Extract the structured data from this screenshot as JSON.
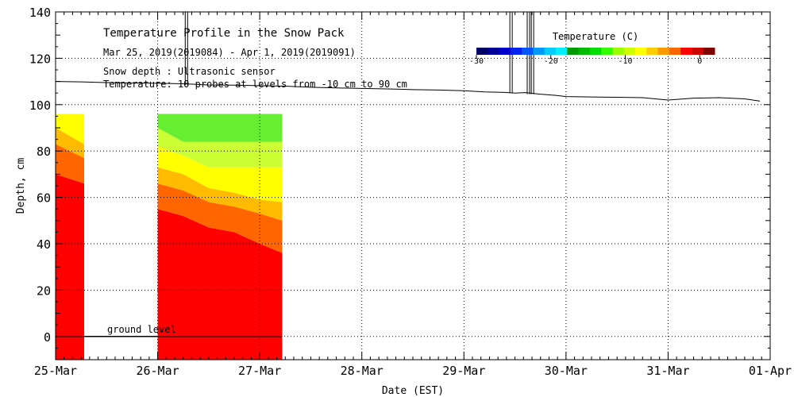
{
  "chart_data": {
    "type": "heatmap",
    "title": "Temperature Profile in the Snow Pack",
    "subtitle": "Mar 25, 2019(2019084) - Apr  1, 2019(2019091)",
    "notes": [
      "Snow depth : Ultrasonic sensor",
      "Temperature: 10 probes at levels from -10 cm to 90 cm"
    ],
    "xlabel": "Date (EST)",
    "ylabel": "Depth, cm",
    "ylim": [
      -10,
      140
    ],
    "xlim": [
      0,
      7
    ],
    "x_ticks": [
      {
        "x": 0,
        "label": "25-Mar"
      },
      {
        "x": 1,
        "label": "26-Mar"
      },
      {
        "x": 2,
        "label": "27-Mar"
      },
      {
        "x": 3,
        "label": "28-Mar"
      },
      {
        "x": 4,
        "label": "29-Mar"
      },
      {
        "x": 5,
        "label": "30-Mar"
      },
      {
        "x": 6,
        "label": "31-Mar"
      },
      {
        "x": 7,
        "label": "01-Apr"
      }
    ],
    "y_ticks": [
      0,
      20,
      40,
      60,
      80,
      100,
      120,
      140
    ],
    "ground_label": "ground level",
    "colorbar": {
      "title": "Temperature (C)",
      "range": [
        -30,
        2
      ],
      "tick_values": [
        -30,
        -20,
        -10,
        0
      ],
      "tick_labels": [
        "-30",
        "-20",
        "-10",
        "0"
      ],
      "colors": [
        "#000066",
        "#000099",
        "#0000cc",
        "#0022ee",
        "#0055ff",
        "#0099ff",
        "#00ccff",
        "#00eeff",
        "#009900",
        "#00bb00",
        "#00dd00",
        "#33ff00",
        "#99ff00",
        "#ccff00",
        "#ffff00",
        "#ffcc00",
        "#ff9900",
        "#ff6600",
        "#ff0000",
        "#cc0000",
        "#800000"
      ]
    },
    "snow_depth": {
      "x": [
        0,
        0.25,
        0.5,
        0.75,
        1.0,
        1.25,
        1.5,
        1.75,
        2.0,
        2.25,
        2.5,
        2.75,
        3.0,
        3.25,
        3.5,
        3.75,
        4.0,
        4.2,
        4.4,
        4.5,
        4.6,
        4.75,
        4.9,
        5.0,
        5.25,
        5.5,
        5.75,
        6.0,
        6.25,
        6.5,
        6.75,
        6.9
      ],
      "depth": [
        110,
        109.8,
        109.5,
        109.3,
        109.2,
        109,
        108.5,
        108.4,
        108.2,
        108,
        107.5,
        107.2,
        107,
        106.8,
        106.5,
        106.3,
        106,
        105.5,
        105.3,
        105,
        105.2,
        104.5,
        104,
        103.5,
        103.3,
        103.2,
        103,
        102,
        102.8,
        103,
        102.5,
        101.5
      ],
      "spikes": [
        {
          "x": 1.27,
          "top": 140
        },
        {
          "x": 4.45,
          "top": 140
        },
        {
          "x": 4.62,
          "top": 140
        },
        {
          "x": 4.66,
          "top": 140
        }
      ]
    },
    "temperature_bands": [
      {
        "x0": 0.0,
        "x1": 0.28,
        "segments": [
          {
            "x": [
              0,
              0.28
            ],
            "bounds": [
              [
                70,
                66
              ],
              [
                83,
                77
              ],
              [
                90,
                83
              ]
            ],
            "top": 96
          }
        ]
      },
      {
        "x0": 1.0,
        "x1": 2.22,
        "segments": [
          {
            "x": [
              1.0,
              1.25,
              1.5,
              1.75,
              2.0,
              2.22
            ],
            "bounds": [
              [
                55,
                52,
                47,
                45,
                40,
                36
              ],
              [
                66,
                63,
                58,
                56,
                53,
                50
              ],
              [
                73,
                70,
                64,
                62,
                59,
                58
              ],
              [
                82,
                78,
                73,
                73,
                73,
                73
              ]
            ],
            "green_top": [
              90,
              84,
              84,
              84,
              84,
              84
            ],
            "top": 96
          }
        ]
      }
    ],
    "band_colors": [
      "#ff0000",
      "#ff6600",
      "#ffbb00",
      "#ffff00",
      "#ccff33",
      "#66ee33",
      "#22cc22"
    ]
  }
}
